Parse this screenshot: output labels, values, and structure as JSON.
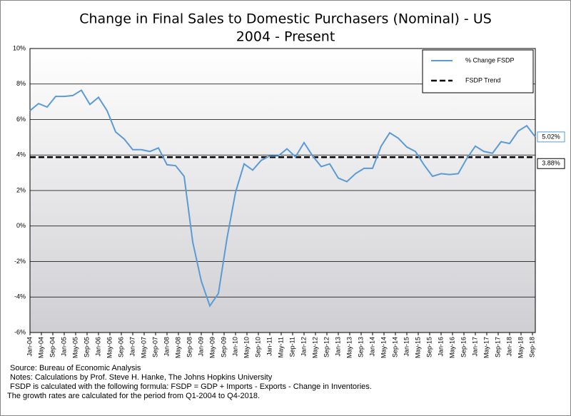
{
  "chart_data": {
    "type": "line",
    "title": "Change in Final Sales to Domestic Purchasers (Nominal) - US",
    "subtitle": "2004 - Present",
    "x": [
      "2004-01",
      "2004-04",
      "2004-07",
      "2004-10",
      "2005-01",
      "2005-04",
      "2005-07",
      "2005-10",
      "2006-01",
      "2006-04",
      "2006-07",
      "2006-10",
      "2007-01",
      "2007-04",
      "2007-07",
      "2007-10",
      "2008-01",
      "2008-04",
      "2008-07",
      "2008-10",
      "2009-01",
      "2009-04",
      "2009-07",
      "2009-10",
      "2010-01",
      "2010-04",
      "2010-07",
      "2010-10",
      "2011-01",
      "2011-04",
      "2011-07",
      "2011-10",
      "2012-01",
      "2012-04",
      "2012-07",
      "2012-10",
      "2013-01",
      "2013-04",
      "2013-07",
      "2013-10",
      "2014-01",
      "2014-04",
      "2014-07",
      "2014-10",
      "2015-01",
      "2015-04",
      "2015-07",
      "2015-10",
      "2016-01",
      "2016-04",
      "2016-07",
      "2016-10",
      "2017-01",
      "2017-04",
      "2017-07",
      "2017-10",
      "2018-01",
      "2018-04",
      "2018-07",
      "2018-10"
    ],
    "series": [
      {
        "name": "% Change FSDP",
        "color": "#5b9bd5",
        "values": [
          6.5,
          6.9,
          6.7,
          7.3,
          7.3,
          7.35,
          7.65,
          6.85,
          7.25,
          6.5,
          5.3,
          4.9,
          4.3,
          4.3,
          4.2,
          4.4,
          3.45,
          3.4,
          2.8,
          -0.9,
          -3.1,
          -4.5,
          -3.8,
          -0.7,
          1.9,
          3.5,
          3.15,
          3.7,
          3.95,
          3.95,
          4.35,
          3.9,
          4.7,
          3.95,
          3.35,
          3.5,
          2.7,
          2.5,
          2.95,
          3.25,
          3.25,
          4.5,
          5.25,
          4.95,
          4.45,
          4.2,
          3.45,
          2.8,
          2.95,
          2.9,
          2.95,
          3.8,
          4.5,
          4.2,
          4.1,
          4.75,
          4.65,
          5.35,
          5.65,
          5.02
        ],
        "value_labels": [
          null,
          null,
          null,
          null,
          null,
          null,
          null,
          null,
          null,
          null,
          null,
          null,
          null,
          null,
          null,
          null,
          null,
          null,
          null,
          null,
          null,
          null,
          null,
          null,
          null,
          null,
          null,
          null,
          null,
          null,
          null,
          null,
          null,
          null,
          null,
          null,
          null,
          null,
          null,
          null,
          null,
          null,
          null,
          null,
          null,
          null,
          null,
          null,
          null,
          null,
          null,
          null,
          null,
          null,
          null,
          null,
          null,
          null,
          null,
          "5.02%"
        ]
      }
    ],
    "trend": {
      "name": "FSDP Trend",
      "color": "#000000",
      "value": 3.88,
      "value_label": "3.88%"
    },
    "xlim": [
      "2004-01",
      "2018-10"
    ],
    "xticks": [
      {
        "value": "2004-01",
        "label": "Jan-04"
      },
      {
        "value": "2004-05",
        "label": "May-04"
      },
      {
        "value": "2004-09",
        "label": "Sep-04"
      },
      {
        "value": "2005-01",
        "label": "Jan-05"
      },
      {
        "value": "2005-05",
        "label": "May-05"
      },
      {
        "value": "2005-09",
        "label": "Sep-05"
      },
      {
        "value": "2006-01",
        "label": "Jan-06"
      },
      {
        "value": "2006-05",
        "label": "May-06"
      },
      {
        "value": "2006-09",
        "label": "Sep-06"
      },
      {
        "value": "2007-01",
        "label": "Jan-07"
      },
      {
        "value": "2007-05",
        "label": "May-07"
      },
      {
        "value": "2007-09",
        "label": "Sep-07"
      },
      {
        "value": "2008-01",
        "label": "Jan-08"
      },
      {
        "value": "2008-05",
        "label": "May-08"
      },
      {
        "value": "2008-09",
        "label": "Sep-08"
      },
      {
        "value": "2009-01",
        "label": "Jan-09"
      },
      {
        "value": "2009-05",
        "label": "May-09"
      },
      {
        "value": "2009-09",
        "label": "Sep-09"
      },
      {
        "value": "2010-01",
        "label": "Jan-10"
      },
      {
        "value": "2010-05",
        "label": "May-10"
      },
      {
        "value": "2010-09",
        "label": "Sep-10"
      },
      {
        "value": "2011-01",
        "label": "Jan-11"
      },
      {
        "value": "2011-05",
        "label": "May-11"
      },
      {
        "value": "2011-09",
        "label": "Sep-11"
      },
      {
        "value": "2012-01",
        "label": "Jan-12"
      },
      {
        "value": "2012-05",
        "label": "May-12"
      },
      {
        "value": "2012-09",
        "label": "Sep-12"
      },
      {
        "value": "2013-01",
        "label": "Jan-13"
      },
      {
        "value": "2013-05",
        "label": "May-13"
      },
      {
        "value": "2013-09",
        "label": "Sep-13"
      },
      {
        "value": "2014-01",
        "label": "Jan-14"
      },
      {
        "value": "2014-05",
        "label": "May-14"
      },
      {
        "value": "2014-09",
        "label": "Sep-14"
      },
      {
        "value": "2015-01",
        "label": "Jan-15"
      },
      {
        "value": "2015-05",
        "label": "May-15"
      },
      {
        "value": "2015-09",
        "label": "Sep-15"
      },
      {
        "value": "2016-01",
        "label": "Jan-16"
      },
      {
        "value": "2016-05",
        "label": "May-16"
      },
      {
        "value": "2016-09",
        "label": "Sep-16"
      },
      {
        "value": "2017-01",
        "label": "Jan-17"
      },
      {
        "value": "2017-05",
        "label": "May-17"
      },
      {
        "value": "2017-09",
        "label": "Sep-17"
      },
      {
        "value": "2018-01",
        "label": "Jan-18"
      },
      {
        "value": "2018-05",
        "label": "May-18"
      },
      {
        "value": "2018-09",
        "label": "Sep-18"
      }
    ],
    "ylim": [
      -6,
      10
    ],
    "yticks": [
      {
        "value": -6,
        "label": "-6%"
      },
      {
        "value": -4,
        "label": "-4%"
      },
      {
        "value": -2,
        "label": "-2%"
      },
      {
        "value": 0,
        "label": "0%"
      },
      {
        "value": 2,
        "label": "2%"
      },
      {
        "value": 4,
        "label": "4%"
      },
      {
        "value": 6,
        "label": "6%"
      },
      {
        "value": 8,
        "label": "8%"
      },
      {
        "value": 10,
        "label": "10%"
      }
    ],
    "grid": true,
    "notes": [
      "Source: Bureau of Economic Analysis",
      "Notes: Calculations by Prof. Steve H. Hanke, The Johns Hopkins University",
      "FSDP is calculated with the following formula: FSDP = GDP + Imports - Exports - Change in Inventories.",
      "The growth rates are calculated for the period from Q1-2004 to Q4-2018."
    ]
  }
}
